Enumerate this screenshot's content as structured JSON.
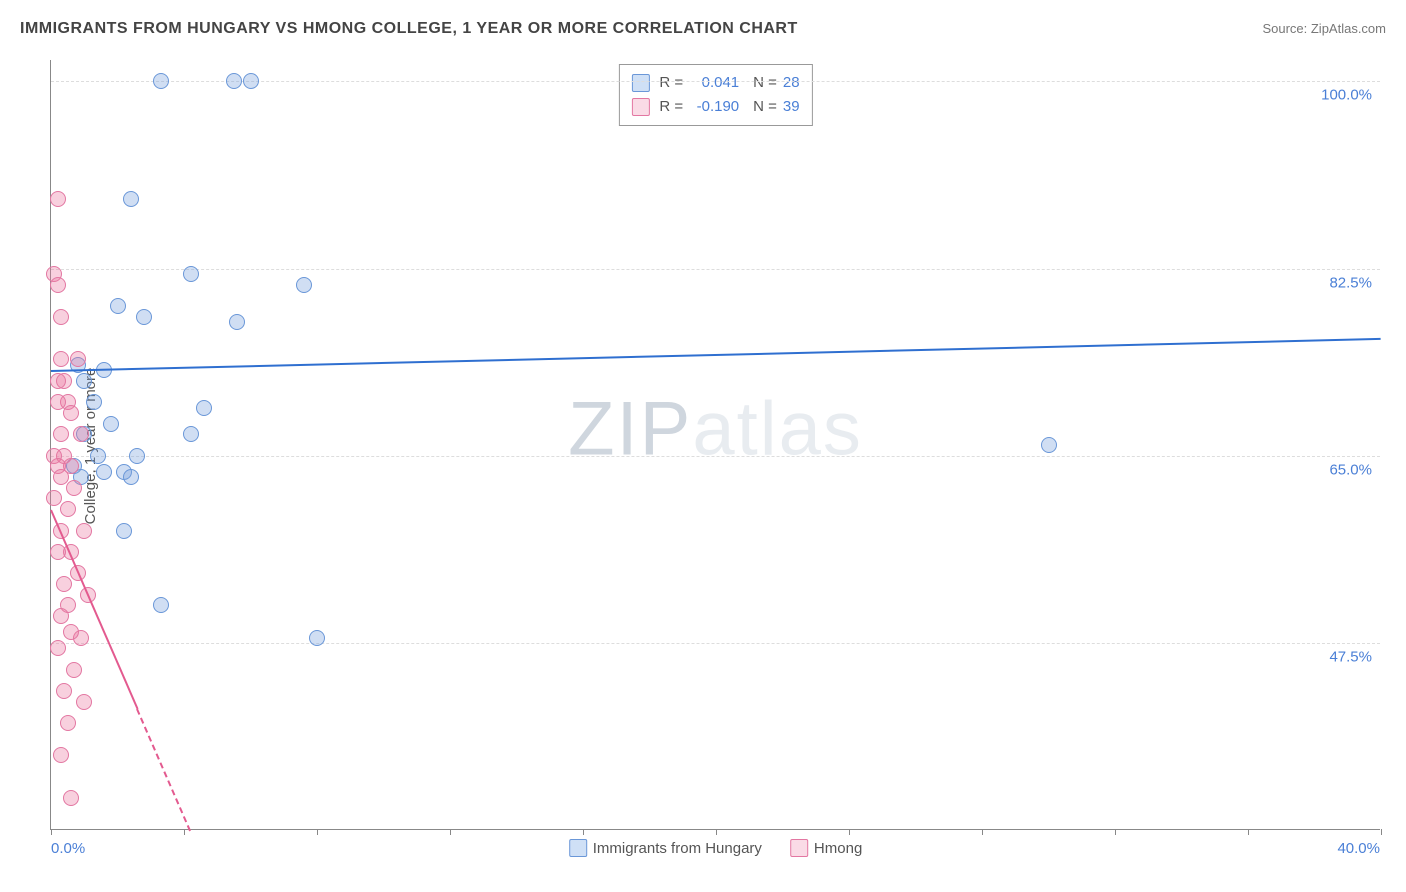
{
  "header": {
    "title": "IMMIGRANTS FROM HUNGARY VS HMONG COLLEGE, 1 YEAR OR MORE CORRELATION CHART",
    "source_prefix": "Source: ",
    "source_name": "ZipAtlas.com"
  },
  "ylabel": "College, 1 year or more",
  "watermark": {
    "part1": "ZIP",
    "part2": "atlas"
  },
  "chart": {
    "type": "scatter",
    "xlim": [
      0.0,
      40.0
    ],
    "ylim": [
      30.0,
      102.0
    ],
    "x_tick_step": 4.0,
    "x_min_label": "0.0%",
    "x_max_label": "40.0%",
    "x_label_color": "#4a7fd6",
    "y_ticks": [
      {
        "v": 47.5,
        "label": "47.5%"
      },
      {
        "v": 65.0,
        "label": "65.0%"
      },
      {
        "v": 82.5,
        "label": "82.5%"
      },
      {
        "v": 100.0,
        "label": "100.0%"
      }
    ],
    "y_label_color": "#4a7fd6",
    "grid_color": "#dddddd",
    "background_color": "#ffffff",
    "marker_radius": 8,
    "series": [
      {
        "name": "Immigrants from Hungary",
        "fill": "rgba(120,160,220,0.35)",
        "stroke": "#6a97d8",
        "swatch_fill": "#cfe0f6",
        "swatch_border": "#6a97d8",
        "r_value": "0.041",
        "n_value": "28",
        "regression": {
          "x1": 0.0,
          "y1": 73.0,
          "x2": 40.0,
          "y2": 76.0,
          "color": "#2f6fd0",
          "dashed": false
        },
        "points": [
          {
            "x": 3.3,
            "y": 100.0
          },
          {
            "x": 5.5,
            "y": 100.0
          },
          {
            "x": 6.0,
            "y": 100.0
          },
          {
            "x": 2.4,
            "y": 89.0
          },
          {
            "x": 4.2,
            "y": 82.0
          },
          {
            "x": 7.6,
            "y": 81.0
          },
          {
            "x": 2.0,
            "y": 79.0
          },
          {
            "x": 2.8,
            "y": 78.0
          },
          {
            "x": 5.6,
            "y": 77.5
          },
          {
            "x": 0.8,
            "y": 73.5
          },
          {
            "x": 1.6,
            "y": 73.0
          },
          {
            "x": 1.0,
            "y": 72.0
          },
          {
            "x": 1.3,
            "y": 70.0
          },
          {
            "x": 4.6,
            "y": 69.5
          },
          {
            "x": 1.8,
            "y": 68.0
          },
          {
            "x": 4.2,
            "y": 67.0
          },
          {
            "x": 1.0,
            "y": 67.0
          },
          {
            "x": 30.0,
            "y": 66.0
          },
          {
            "x": 2.6,
            "y": 65.0
          },
          {
            "x": 1.4,
            "y": 65.0
          },
          {
            "x": 0.7,
            "y": 64.0
          },
          {
            "x": 0.9,
            "y": 63.0
          },
          {
            "x": 1.6,
            "y": 63.5
          },
          {
            "x": 2.2,
            "y": 63.5
          },
          {
            "x": 2.4,
            "y": 63.0
          },
          {
            "x": 2.2,
            "y": 58.0
          },
          {
            "x": 3.3,
            "y": 51.0
          },
          {
            "x": 8.0,
            "y": 48.0
          }
        ]
      },
      {
        "name": "Hmong",
        "fill": "rgba(235,120,160,0.35)",
        "stroke": "#e377a2",
        "swatch_fill": "#fadbe6",
        "swatch_border": "#e377a2",
        "r_value": "-0.190",
        "n_value": "39",
        "regression": {
          "x1": 0.0,
          "y1": 60.0,
          "x2": 4.2,
          "y2": 30.0,
          "color": "#e35a8f",
          "dashed_after": 2.6
        },
        "points": [
          {
            "x": 0.2,
            "y": 89.0
          },
          {
            "x": 0.1,
            "y": 82.0
          },
          {
            "x": 0.3,
            "y": 78.0
          },
          {
            "x": 0.2,
            "y": 81.0
          },
          {
            "x": 0.8,
            "y": 74.0
          },
          {
            "x": 0.3,
            "y": 74.0
          },
          {
            "x": 0.4,
            "y": 72.0
          },
          {
            "x": 0.2,
            "y": 72.0
          },
          {
            "x": 0.5,
            "y": 70.0
          },
          {
            "x": 0.6,
            "y": 69.0
          },
          {
            "x": 0.2,
            "y": 70.0
          },
          {
            "x": 0.9,
            "y": 67.0
          },
          {
            "x": 0.3,
            "y": 67.0
          },
          {
            "x": 0.4,
            "y": 65.0
          },
          {
            "x": 0.1,
            "y": 65.0
          },
          {
            "x": 0.6,
            "y": 64.0
          },
          {
            "x": 0.2,
            "y": 64.0
          },
          {
            "x": 0.7,
            "y": 62.0
          },
          {
            "x": 0.3,
            "y": 63.0
          },
          {
            "x": 0.5,
            "y": 60.0
          },
          {
            "x": 0.1,
            "y": 61.0
          },
          {
            "x": 1.0,
            "y": 58.0
          },
          {
            "x": 0.3,
            "y": 58.0
          },
          {
            "x": 0.6,
            "y": 56.0
          },
          {
            "x": 0.2,
            "y": 56.0
          },
          {
            "x": 0.8,
            "y": 54.0
          },
          {
            "x": 0.4,
            "y": 53.0
          },
          {
            "x": 1.1,
            "y": 52.0
          },
          {
            "x": 0.5,
            "y": 51.0
          },
          {
            "x": 0.3,
            "y": 50.0
          },
          {
            "x": 0.9,
            "y": 48.0
          },
          {
            "x": 0.6,
            "y": 48.5
          },
          {
            "x": 0.2,
            "y": 47.0
          },
          {
            "x": 0.7,
            "y": 45.0
          },
          {
            "x": 0.4,
            "y": 43.0
          },
          {
            "x": 1.0,
            "y": 42.0
          },
          {
            "x": 0.5,
            "y": 40.0
          },
          {
            "x": 0.3,
            "y": 37.0
          },
          {
            "x": 0.6,
            "y": 33.0
          }
        ]
      }
    ]
  },
  "legend_labels": {
    "r": "R =",
    "n": "N ="
  }
}
